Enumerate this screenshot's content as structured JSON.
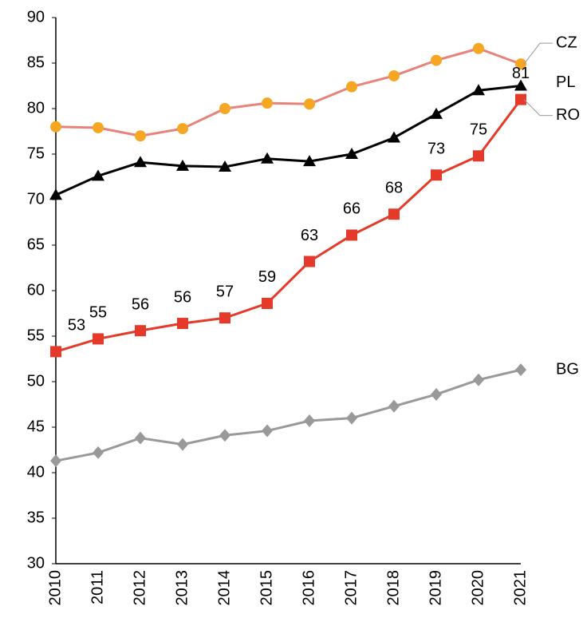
{
  "chart_data": {
    "type": "line",
    "categories": [
      "2010",
      "2011",
      "2012",
      "2013",
      "2014",
      "2015",
      "2016",
      "2017",
      "2018",
      "2019",
      "2020",
      "2021"
    ],
    "series": [
      {
        "name": "CZ",
        "color": "#e8837a",
        "marker_color": "#f5a623",
        "marker": "circle",
        "values": [
          78.0,
          77.9,
          77.0,
          77.8,
          80.0,
          80.6,
          80.5,
          82.4,
          83.6,
          85.3,
          86.6,
          84.9
        ]
      },
      {
        "name": "PL",
        "color": "#000000",
        "marker_color": "#000000",
        "marker": "triangle",
        "values": [
          70.5,
          72.6,
          74.1,
          73.7,
          73.6,
          74.5,
          74.2,
          75.0,
          76.8,
          79.4,
          82.0,
          82.5
        ]
      },
      {
        "name": "RO",
        "color": "#e53a2a",
        "marker_color": "#e53a2a",
        "marker": "square",
        "values": [
          53.3,
          54.7,
          55.6,
          56.4,
          57.0,
          58.6,
          63.2,
          66.1,
          68.4,
          72.7,
          74.8,
          81.0
        ],
        "value_labels": [
          "53",
          "55",
          "56",
          "56",
          "57",
          "59",
          "63",
          "66",
          "68",
          "73",
          "75",
          "81"
        ]
      },
      {
        "name": "BG",
        "color": "#999999",
        "marker_color": "#999999",
        "marker": "diamond",
        "values": [
          41.3,
          42.2,
          43.8,
          43.1,
          44.1,
          44.6,
          45.7,
          46.0,
          47.3,
          48.6,
          50.2,
          51.3
        ]
      }
    ],
    "ylim": [
      30,
      90
    ],
    "yticks": [
      30,
      35,
      40,
      45,
      50,
      55,
      60,
      65,
      70,
      75,
      80,
      85,
      90
    ],
    "grid": false
  }
}
